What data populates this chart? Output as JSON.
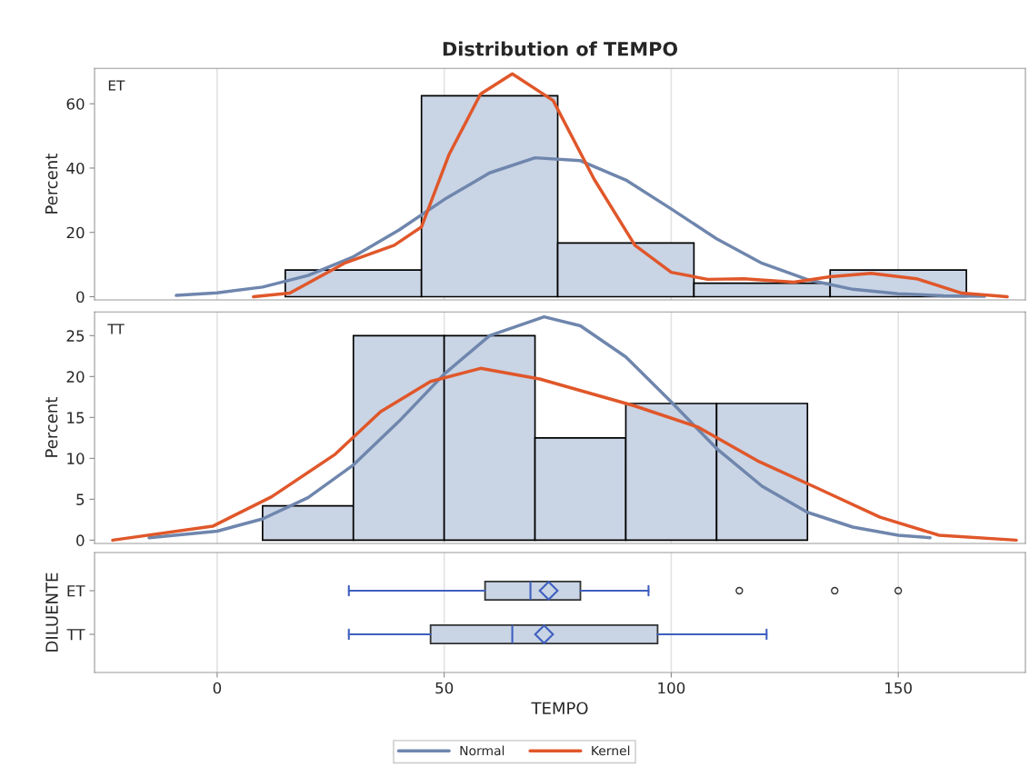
{
  "chart_data": [
    {
      "type": "histogram",
      "title": "Distribution of TEMPO",
      "ylabel": "Percent",
      "annotations": [
        "ET"
      ],
      "color": "#c9d4e5",
      "bins": [
        15,
        45,
        75,
        105,
        135,
        165
      ],
      "values": [
        8.3,
        62.5,
        16.7,
        4.2,
        8.3
      ],
      "series": [
        {
          "type": "line",
          "color": "#6f86ad",
          "x": [
            -9,
            0,
            10,
            20,
            30,
            40,
            50,
            60,
            70,
            80,
            90,
            100,
            110,
            120,
            130,
            140,
            150,
            160,
            169
          ],
          "values": [
            0.4,
            1.2,
            3.0,
            6.6,
            12.4,
            20.7,
            30.2,
            38.5,
            43.2,
            42.3,
            36.3,
            27.3,
            18.0,
            10.4,
            5.3,
            2.3,
            0.9,
            0.3,
            0.1
          ]
        },
        {
          "type": "line",
          "color": "#e0572a",
          "x": [
            8,
            16,
            28,
            39,
            45,
            51,
            58,
            65,
            74,
            83,
            92,
            100,
            108,
            116,
            127,
            135,
            144,
            154,
            164,
            174
          ],
          "values": [
            0,
            1.1,
            10.4,
            16,
            21.7,
            44,
            63,
            69.3,
            61,
            36.6,
            16,
            7.6,
            5.4,
            5.6,
            4.5,
            6.2,
            7.3,
            5.6,
            1.1,
            0
          ]
        }
      ],
      "xlim": [
        -27,
        178
      ],
      "ylim": [
        -1,
        71
      ],
      "xticks": [
        0,
        50,
        100,
        150
      ],
      "yticks": [
        0,
        20,
        40,
        60
      ],
      "grid": "x",
      "tick_labels": "y"
    },
    {
      "type": "histogram",
      "ylabel": "Percent",
      "annotations": [
        "TT"
      ],
      "color": "#c9d4e5",
      "bins": [
        10,
        30,
        50,
        70,
        90,
        110,
        130
      ],
      "values": [
        4.2,
        25,
        25,
        12.5,
        16.7,
        16.7
      ],
      "series": [
        {
          "type": "line",
          "name": "Normal",
          "color": "#6f86ad",
          "x": [
            -15,
            0,
            10,
            20,
            30,
            40,
            50,
            60,
            72,
            80,
            90,
            100,
            110,
            120,
            130,
            140,
            150,
            157
          ],
          "values": [
            0.3,
            1.1,
            2.6,
            5.2,
            9.2,
            14.5,
            20.3,
            25.0,
            27.3,
            26.2,
            22.4,
            16.9,
            11.2,
            6.6,
            3.4,
            1.6,
            0.6,
            0.3
          ]
        },
        {
          "type": "line",
          "name": "Kernel",
          "color": "#e0572a",
          "x": [
            -23,
            -1,
            12,
            26,
            36,
            47,
            58,
            71,
            92,
            106,
            119,
            132,
            146,
            159,
            176
          ],
          "values": [
            0,
            1.7,
            5.3,
            10.5,
            15.7,
            19.4,
            21.0,
            19.7,
            16.4,
            13.8,
            9.7,
            6.4,
            2.8,
            0.6,
            0
          ]
        }
      ],
      "xlim": [
        -27,
        178
      ],
      "ylim": [
        -0.4,
        27.9
      ],
      "xticks": [
        0,
        50,
        100,
        150
      ],
      "yticks": [
        0,
        5,
        10,
        15,
        20,
        25
      ],
      "grid": "x",
      "tick_labels": "y",
      "legend": "bottom"
    },
    {
      "type": "box",
      "orientation": "horizontal",
      "xlabel": "TEMPO",
      "ylabel": "DILUENTE",
      "color": "#c9d4e5",
      "categories": [
        "ET",
        "TT"
      ],
      "boxes": [
        {
          "low": 29,
          "q1": 59,
          "median": 69,
          "q3": 80,
          "high": 95,
          "mean": 73,
          "outliers": [
            115,
            136,
            150
          ]
        },
        {
          "low": 29,
          "q1": 47,
          "median": 65,
          "q3": 97,
          "high": 121,
          "mean": 72
        }
      ],
      "xlim": [
        -27,
        178
      ],
      "xticks": [
        0,
        50,
        100,
        150
      ],
      "grid": "x"
    }
  ]
}
